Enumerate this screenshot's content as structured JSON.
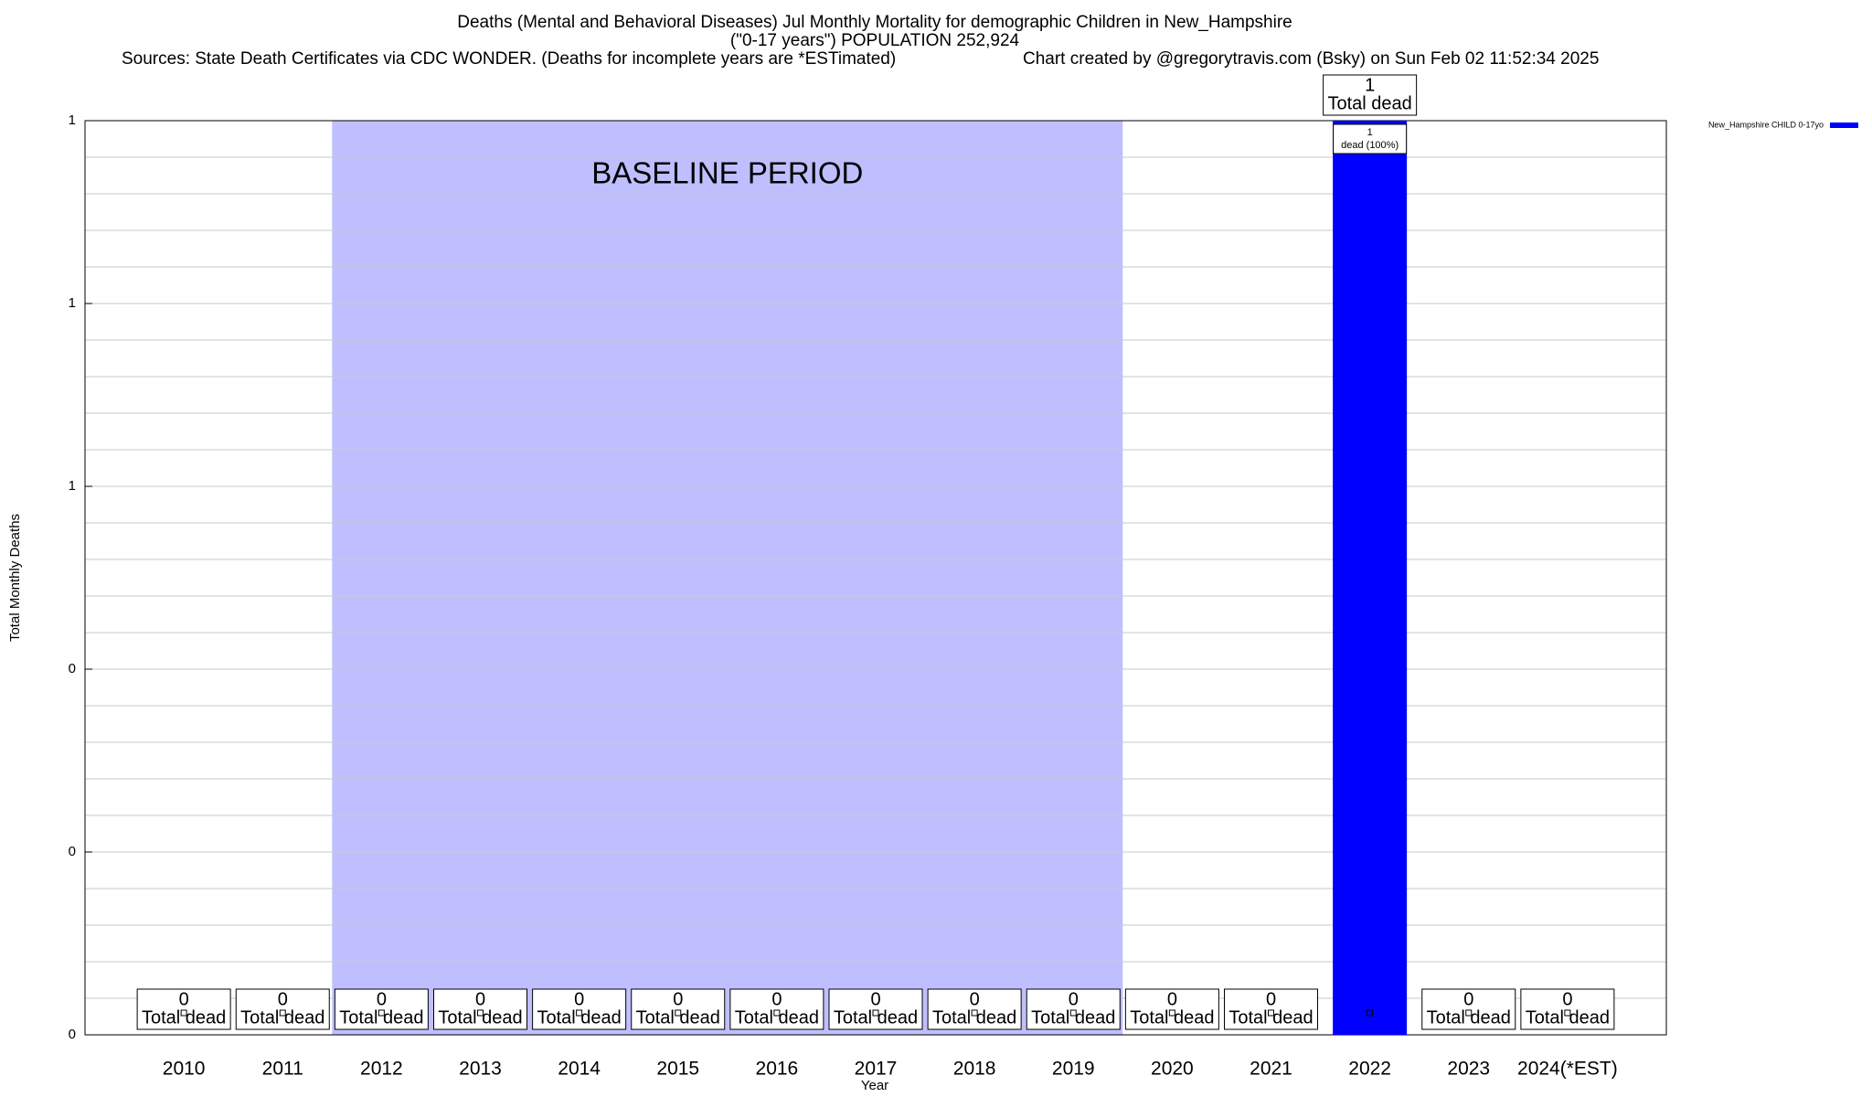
{
  "chart_data": {
    "type": "bar",
    "title": "Deaths (Mental and Behavioral Diseases) Jul Monthly Mortality for demographic Children in New_Hampshire",
    "subtitle": "(\"0-17 years\") POPULATION 252,924",
    "source": "Sources: State Death Certificates via CDC WONDER. (Deaths for incomplete years are *ESTimated)",
    "credit": "Chart created by @gregorytravis.com (Bsky) on Sun Feb 02 11:52:34 2025",
    "x_label": "Year",
    "y_label": "Total Monthly Deaths",
    "categories": [
      "2010",
      "2011",
      "2012",
      "2013",
      "2014",
      "2015",
      "2016",
      "2017",
      "2018",
      "2019",
      "2020",
      "2021",
      "2022",
      "2023",
      "2024(*EST)"
    ],
    "series": [
      {
        "name": "New_Hampshire CHILD 0-17yo",
        "color": "#0000ff",
        "values": [
          0,
          0,
          0,
          0,
          0,
          0,
          0,
          0,
          0,
          0,
          0,
          0,
          1,
          0,
          0
        ],
        "inner_labels": [
          null,
          null,
          null,
          null,
          null,
          null,
          null,
          null,
          null,
          null,
          null,
          null,
          "dead (100%)",
          null,
          null
        ]
      }
    ],
    "value_label_text": "Total dead",
    "baseline": {
      "label": "BASELINE PERIOD",
      "start": "2012",
      "end": "2019",
      "color": "#bfbfff"
    },
    "ylim": [
      0,
      1
    ],
    "yticks": [
      0,
      {
        "value": 0.2,
        "label": "0"
      },
      {
        "value": 0.4,
        "label": "0"
      },
      {
        "value": 0.6,
        "label": "1"
      },
      {
        "value": 0.8,
        "label": "1"
      },
      1
    ],
    "minor_yticks": [
      0.04,
      0.08,
      0.12,
      0.16,
      0.24,
      0.28,
      0.32,
      0.36,
      0.44,
      0.48,
      0.52,
      0.56,
      0.64,
      0.68,
      0.72,
      0.76,
      0.84,
      0.88,
      0.92,
      0.96
    ],
    "grid": true,
    "legend": "top-right"
  }
}
